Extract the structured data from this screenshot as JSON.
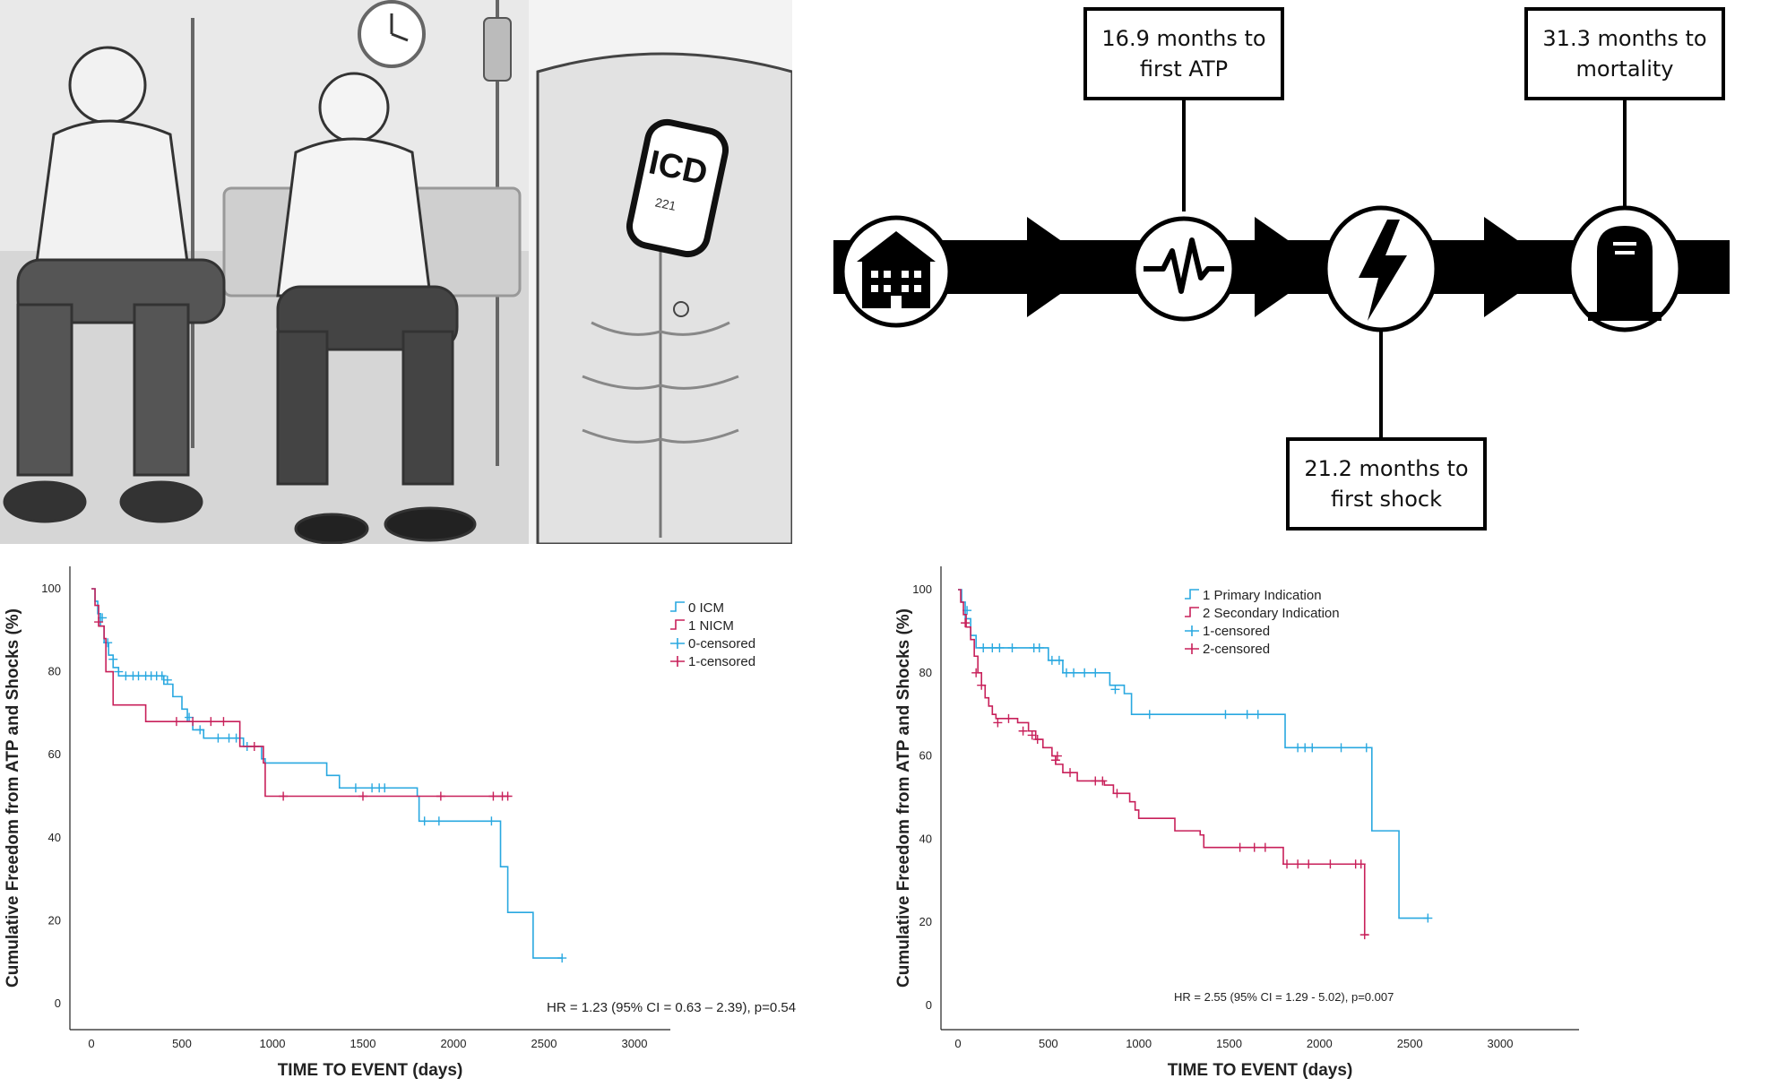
{
  "illustration": {
    "icons": [
      "patients-in-hospital-illustration",
      "icd-implant-chest-illustration",
      "clock-icon",
      "iv-bag-icon"
    ],
    "implant_label": "ICD",
    "implant_code": "221"
  },
  "timeline": {
    "stages": [
      "hospital-icon",
      "ecg-waveform-icon",
      "lightning-shock-icon",
      "tombstone-icon"
    ],
    "atp_text": "16.9 months to first ATP",
    "shock_text": "21.2 months to first shock",
    "mortality_text": "31.3 months to mortality"
  },
  "chart_data": [
    {
      "type": "line",
      "step": true,
      "ylabel": "Cumulative Freedom from ATP and Shocks (%)",
      "xlabel": "TIME TO EVENT (days)",
      "xlim": [
        0,
        3000
      ],
      "ylim": [
        0,
        100
      ],
      "xticks": [
        "0",
        "500",
        "1000",
        "1500",
        "2000",
        "2500",
        "3000"
      ],
      "yticks": [
        "0",
        "20",
        "40",
        "60",
        "80",
        "100"
      ],
      "legend": [
        "0 ICM",
        "1 NICM",
        "0-censored",
        "1-censored"
      ],
      "legend_position": "top-right",
      "annotation": "HR = 1.23 (95% CI = 0.63 – 2.39), p=0.54",
      "series": [
        {
          "name": "0 ICM",
          "color": "#29a8e0",
          "points": [
            [
              0,
              100
            ],
            [
              20,
              97
            ],
            [
              35,
              94
            ],
            [
              50,
              91
            ],
            [
              70,
              87
            ],
            [
              95,
              84
            ],
            [
              120,
              81
            ],
            [
              150,
              79
            ],
            [
              400,
              77
            ],
            [
              450,
              74
            ],
            [
              500,
              71
            ],
            [
              530,
              68
            ],
            [
              560,
              66
            ],
            [
              620,
              64
            ],
            [
              840,
              62
            ],
            [
              940,
              59
            ],
            [
              960,
              58
            ],
            [
              1300,
              55
            ],
            [
              1370,
              52
            ],
            [
              1800,
              50
            ],
            [
              1810,
              44
            ],
            [
              2240,
              44
            ],
            [
              2260,
              33
            ],
            [
              2300,
              22
            ],
            [
              2440,
              11
            ],
            [
              2600,
              11
            ]
          ],
          "censored": [
            [
              60,
              93
            ],
            [
              90,
              87
            ],
            [
              120,
              83
            ],
            [
              150,
              80
            ],
            [
              190,
              79
            ],
            [
              230,
              79
            ],
            [
              260,
              79
            ],
            [
              300,
              79
            ],
            [
              330,
              79
            ],
            [
              360,
              79
            ],
            [
              390,
              79
            ],
            [
              420,
              78
            ],
            [
              540,
              69
            ],
            [
              600,
              66
            ],
            [
              700,
              64
            ],
            [
              760,
              64
            ],
            [
              800,
              64
            ],
            [
              860,
              62
            ],
            [
              1460,
              52
            ],
            [
              1550,
              52
            ],
            [
              1590,
              52
            ],
            [
              1620,
              52
            ],
            [
              1840,
              44
            ],
            [
              1920,
              44
            ],
            [
              2210,
              44
            ],
            [
              2600,
              11
            ]
          ]
        },
        {
          "name": "1 NICM",
          "color": "#c8205a",
          "points": [
            [
              0,
              100
            ],
            [
              20,
              96
            ],
            [
              40,
              91
            ],
            [
              70,
              88
            ],
            [
              80,
              80
            ],
            [
              120,
              72
            ],
            [
              300,
              68
            ],
            [
              500,
              68
            ],
            [
              820,
              62
            ],
            [
              950,
              58
            ],
            [
              960,
              50
            ],
            [
              2300,
              50
            ]
          ],
          "censored": [
            [
              40,
              92
            ],
            [
              470,
              68
            ],
            [
              560,
              68
            ],
            [
              660,
              68
            ],
            [
              730,
              68
            ],
            [
              900,
              62
            ],
            [
              1060,
              50
            ],
            [
              1500,
              50
            ],
            [
              1930,
              50
            ],
            [
              2220,
              50
            ],
            [
              2270,
              50
            ],
            [
              2300,
              50
            ]
          ]
        }
      ]
    },
    {
      "type": "line",
      "step": true,
      "ylabel": "Cumulative Freedom from ATP and Shocks (%)",
      "xlabel": "TIME TO EVENT (days)",
      "xlim": [
        0,
        3000
      ],
      "ylim": [
        0,
        100
      ],
      "xticks": [
        "0",
        "500",
        "1000",
        "1500",
        "2000",
        "2500",
        "3000"
      ],
      "yticks": [
        "0",
        "20",
        "40",
        "60",
        "80",
        "100"
      ],
      "legend": [
        "1 Primary Indication",
        "2 Secondary Indication",
        "1-censored",
        "2-censored"
      ],
      "legend_position": "top-right",
      "annotation": "HR = 2.55 (95% CI = 1.29 - 5.02), p=0.007",
      "series": [
        {
          "name": "1 Primary Indication",
          "color": "#29a8e0",
          "points": [
            [
              0,
              100
            ],
            [
              20,
              97
            ],
            [
              40,
              93
            ],
            [
              70,
              89
            ],
            [
              100,
              86
            ],
            [
              480,
              86
            ],
            [
              500,
              83
            ],
            [
              580,
              80
            ],
            [
              840,
              77
            ],
            [
              920,
              75
            ],
            [
              960,
              70
            ],
            [
              1780,
              70
            ],
            [
              1810,
              62
            ],
            [
              2280,
              62
            ],
            [
              2290,
              42
            ],
            [
              2420,
              42
            ],
            [
              2440,
              21
            ],
            [
              2600,
              21
            ]
          ],
          "censored": [
            [
              50,
              95
            ],
            [
              140,
              86
            ],
            [
              190,
              86
            ],
            [
              230,
              86
            ],
            [
              300,
              86
            ],
            [
              420,
              86
            ],
            [
              450,
              86
            ],
            [
              520,
              83
            ],
            [
              560,
              83
            ],
            [
              600,
              80
            ],
            [
              640,
              80
            ],
            [
              700,
              80
            ],
            [
              760,
              80
            ],
            [
              870,
              76
            ],
            [
              1060,
              70
            ],
            [
              1480,
              70
            ],
            [
              1600,
              70
            ],
            [
              1660,
              70
            ],
            [
              1880,
              62
            ],
            [
              1920,
              62
            ],
            [
              1960,
              62
            ],
            [
              2120,
              62
            ],
            [
              2260,
              62
            ],
            [
              2600,
              21
            ]
          ]
        },
        {
          "name": "2 Secondary Indication",
          "color": "#c8205a",
          "points": [
            [
              0,
              100
            ],
            [
              15,
              97
            ],
            [
              30,
              94
            ],
            [
              45,
              91
            ],
            [
              70,
              88
            ],
            [
              90,
              84
            ],
            [
              110,
              80
            ],
            [
              130,
              77
            ],
            [
              150,
              74
            ],
            [
              170,
              72
            ],
            [
              190,
              70
            ],
            [
              210,
              69
            ],
            [
              330,
              68
            ],
            [
              390,
              66
            ],
            [
              430,
              64
            ],
            [
              470,
              62
            ],
            [
              520,
              60
            ],
            [
              540,
              58
            ],
            [
              580,
              56
            ],
            [
              660,
              54
            ],
            [
              810,
              53
            ],
            [
              860,
              51
            ],
            [
              950,
              49
            ],
            [
              980,
              47
            ],
            [
              1000,
              45
            ],
            [
              1150,
              45
            ],
            [
              1200,
              42
            ],
            [
              1340,
              41
            ],
            [
              1360,
              38
            ],
            [
              1780,
              38
            ],
            [
              1800,
              34
            ],
            [
              2230,
              34
            ],
            [
              2250,
              17
            ],
            [
              2270,
              17
            ]
          ],
          "censored": [
            [
              40,
              92
            ],
            [
              100,
              80
            ],
            [
              130,
              77
            ],
            [
              220,
              68
            ],
            [
              280,
              69
            ],
            [
              360,
              66
            ],
            [
              410,
              65
            ],
            [
              440,
              64
            ],
            [
              540,
              59
            ],
            [
              550,
              60
            ],
            [
              620,
              56
            ],
            [
              760,
              54
            ],
            [
              800,
              54
            ],
            [
              880,
              51
            ],
            [
              1560,
              38
            ],
            [
              1640,
              38
            ],
            [
              1700,
              38
            ],
            [
              1820,
              34
            ],
            [
              1880,
              34
            ],
            [
              1940,
              34
            ],
            [
              2060,
              34
            ],
            [
              2200,
              34
            ],
            [
              2230,
              34
            ],
            [
              2250,
              17
            ]
          ]
        }
      ]
    }
  ]
}
